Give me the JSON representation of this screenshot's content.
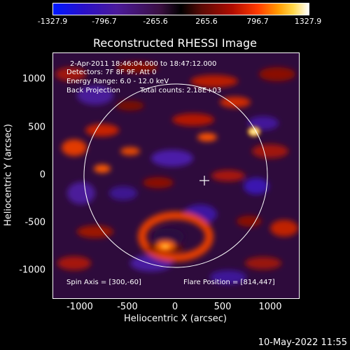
{
  "colorbar": {
    "ticks": [
      "-1327.9",
      "-796.7",
      "-265.6",
      "265.6",
      "796.7",
      "1327.9"
    ]
  },
  "title": "Reconstructed RHESSI Image",
  "info": {
    "line1": "2-Apr-2011 18:46:04.000 to 18:47:12.000",
    "line2": "Detectors: 7F 8F 9F, Att 0",
    "line3": "Energy Range: 6.0 - 12.0 keV",
    "line4a": "Back Projection",
    "line4b": "Total counts: 2.18E+03"
  },
  "annotations": {
    "spin_axis": "Spin Axis = [300,-60]",
    "flare_position": "Flare Position = [814,447]"
  },
  "axes": {
    "xlabel": "Heliocentric X (arcsec)",
    "ylabel": "Heliocentric Y (arcsec)",
    "xticks": [
      "-1000",
      "-500",
      "0",
      "500",
      "1000"
    ],
    "yticks": [
      "1000",
      "500",
      "0",
      "-500",
      "-1000"
    ]
  },
  "footer": "10-May-2022 11:55"
}
